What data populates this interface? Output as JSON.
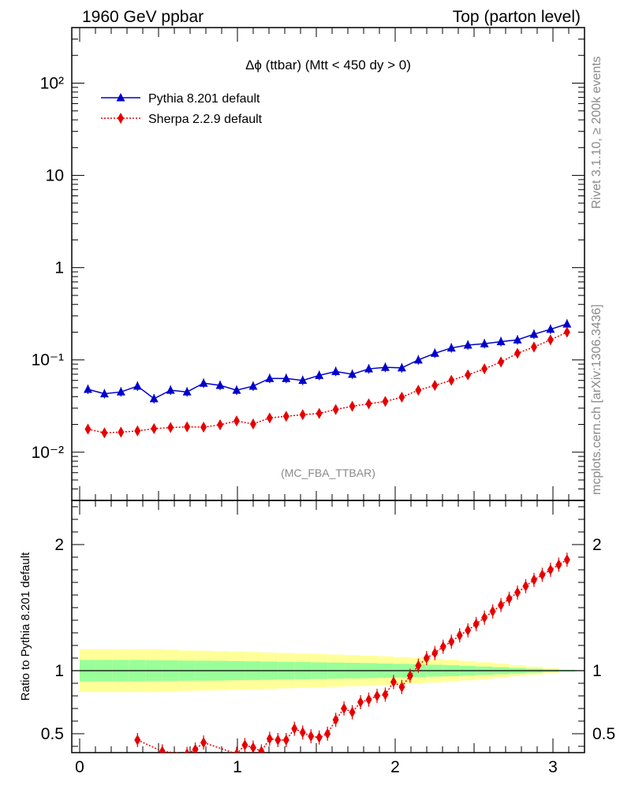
{
  "header": {
    "left": "1960 GeV ppbar",
    "right": "Top (parton level)"
  },
  "side_labels": {
    "rivet": "Rivet 3.1.10, ≥ 200k events",
    "mcplots": "mcplots.cern.ch [arXiv:1306.3436]"
  },
  "chart_data": [
    {
      "type": "line",
      "title": "Δϕ (ttbar) (Mtt < 450 dy > 0)",
      "analysis_tag": "(MC_FBA_TTBAR)",
      "xlim": [
        -0.05,
        3.2
      ],
      "ylim": [
        0.003,
        400
      ],
      "ylog": true,
      "y_ticks": [
        {
          "value": 0.01,
          "label": "10⁻²"
        },
        {
          "value": 0.1,
          "label": "10⁻¹"
        },
        {
          "value": 1,
          "label": "1"
        },
        {
          "value": 10,
          "label": "10"
        },
        {
          "value": 100,
          "label": "10²"
        }
      ],
      "legend_position": "top-left",
      "x": [
        0.0524,
        0.1571,
        0.2618,
        0.3665,
        0.4712,
        0.576,
        0.6807,
        0.7854,
        0.8901,
        0.9948,
        1.0996,
        1.2043,
        1.309,
        1.4137,
        1.5184,
        1.6232,
        1.7279,
        1.8326,
        1.9373,
        2.042,
        2.1468,
        2.2515,
        2.3562,
        2.4609,
        2.5656,
        2.6704,
        2.7751,
        2.8798,
        2.9845,
        3.0892
      ],
      "series": [
        {
          "name": "Pythia 8.201 default",
          "color": "#0000cc",
          "marker": "triangle",
          "values": [
            0.048,
            0.043,
            0.045,
            0.052,
            0.038,
            0.047,
            0.045,
            0.056,
            0.053,
            0.047,
            0.052,
            0.063,
            0.063,
            0.06,
            0.068,
            0.075,
            0.07,
            0.08,
            0.083,
            0.082,
            0.1,
            0.118,
            0.135,
            0.145,
            0.15,
            0.158,
            0.165,
            0.19,
            0.215,
            0.245
          ]
        },
        {
          "name": "Sherpa 2.2.9 default",
          "color": "#e60000",
          "marker": "diamond",
          "values": [
            0.0178,
            0.0162,
            0.0165,
            0.017,
            0.018,
            0.0185,
            0.0188,
            0.0187,
            0.0198,
            0.0218,
            0.0202,
            0.0235,
            0.0245,
            0.0255,
            0.0263,
            0.029,
            0.0315,
            0.0335,
            0.0355,
            0.0395,
            0.047,
            0.053,
            0.06,
            0.069,
            0.08,
            0.095,
            0.118,
            0.138,
            0.165,
            0.2
          ]
        }
      ]
    },
    {
      "type": "line",
      "ylabel": "Ratio to Pythia 8.201 default",
      "xlim": [
        -0.05,
        3.2
      ],
      "ylim": [
        0.35,
        2.35
      ],
      "x_ticks": [
        "0",
        "1",
        "2",
        "3"
      ],
      "y_ticks": [
        "0.5",
        "1",
        "2"
      ],
      "reference_line": 1,
      "band_colors": {
        "inner": "#99ff99",
        "outer": "#ffff99"
      },
      "bands": {
        "inner_halfwidth": [
          0.085,
          0.085,
          0.085,
          0.085,
          0.083,
          0.082,
          0.08,
          0.079,
          0.078,
          0.076,
          0.074,
          0.072,
          0.07,
          0.068,
          0.066,
          0.064,
          0.062,
          0.06,
          0.057,
          0.054,
          0.051,
          0.047,
          0.043,
          0.038,
          0.033,
          0.028,
          0.022,
          0.016,
          0.01,
          0.006
        ],
        "outer_halfwidth": [
          0.17,
          0.17,
          0.17,
          0.17,
          0.17,
          0.165,
          0.16,
          0.158,
          0.155,
          0.152,
          0.148,
          0.144,
          0.14,
          0.136,
          0.132,
          0.128,
          0.124,
          0.119,
          0.114,
          0.108,
          0.101,
          0.094,
          0.086,
          0.077,
          0.067,
          0.056,
          0.044,
          0.032,
          0.02,
          0.01
        ]
      },
      "series": [
        {
          "name": "Sherpa 2.2.9 default",
          "color": "#e60000",
          "marker": "diamond",
          "x": [
            0.3665,
            0.5236,
            0.6807,
            0.733,
            0.7854,
            0.9948,
            1.0472,
            1.0996,
            1.1519,
            1.2043,
            1.2566,
            1.309,
            1.3614,
            1.4137,
            1.4661,
            1.5184,
            1.5708,
            1.6232,
            1.6755,
            1.7279,
            1.7802,
            1.8326,
            1.885,
            1.9373,
            1.9897,
            2.042,
            2.0944,
            2.1468,
            2.1991,
            2.2515,
            2.3038,
            2.3562,
            2.4086,
            2.4609,
            2.5133,
            2.5656,
            2.618,
            2.6704,
            2.7227,
            2.7751,
            2.8274,
            2.8798,
            2.9322,
            2.9845,
            3.0369,
            3.0892
          ],
          "values": [
            0.45,
            0.36,
            0.34,
            0.375,
            0.43,
            0.34,
            0.41,
            0.39,
            0.36,
            0.46,
            0.45,
            0.45,
            0.54,
            0.51,
            0.48,
            0.47,
            0.5,
            0.61,
            0.7,
            0.67,
            0.75,
            0.77,
            0.8,
            0.81,
            0.91,
            0.87,
            0.96,
            1.04,
            1.1,
            1.14,
            1.19,
            1.23,
            1.28,
            1.32,
            1.37,
            1.42,
            1.47,
            1.52,
            1.57,
            1.62,
            1.67,
            1.72,
            1.76,
            1.8,
            1.84,
            1.88
          ]
        }
      ]
    }
  ]
}
